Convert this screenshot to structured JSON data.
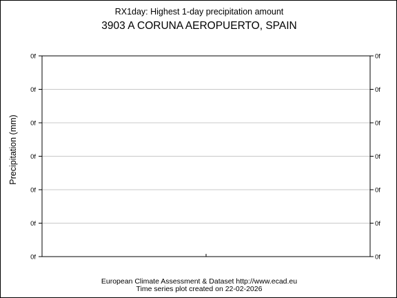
{
  "chart_data": {
    "type": "line",
    "title": "RX1day: Highest 1-day precipitation amount",
    "subtitle": "3903 A CORUNA AEROPUERTO, SPAIN",
    "ylabel": "Precipitation (mm)",
    "xlabel": "",
    "yticks": [
      "0f",
      "0f",
      "0f",
      "0f",
      "0f",
      "0f",
      "0f"
    ],
    "grid": true,
    "series": []
  },
  "footer": {
    "line1": "European Climate Assessment & Dataset  http://www.ecad.eu",
    "line2": "Time series plot created on 22-02-2026"
  },
  "colors": {
    "grid": "#c8c8c8",
    "axis": "#000000"
  }
}
